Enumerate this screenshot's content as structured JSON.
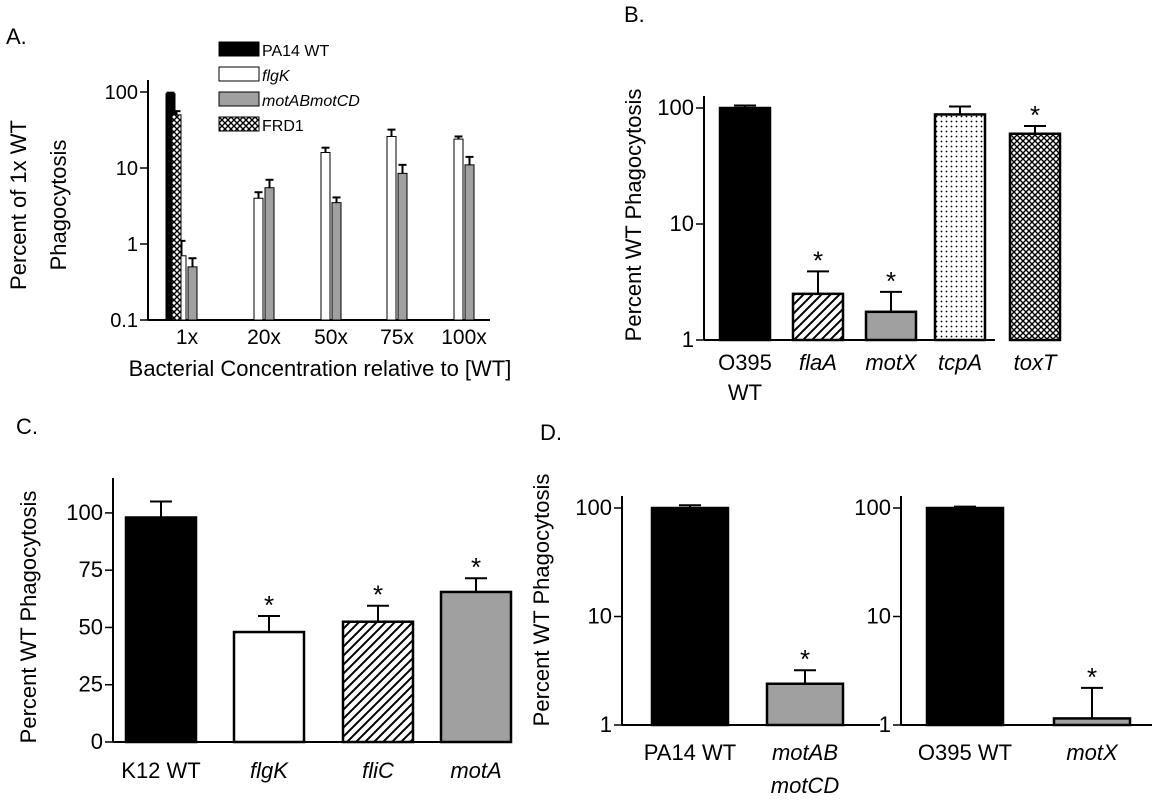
{
  "panels": [
    {
      "label": "A.",
      "ylabel_lines": [
        "Percent of 1x WT",
        "Phagocytosis"
      ],
      "xlabel": "Bacterial Concentration relative to [WT]",
      "yscale": "log",
      "ylim": [
        0.1,
        100
      ],
      "yticks": [
        0.1,
        1,
        10,
        100
      ],
      "ytick_labels": [
        "0.1",
        "1",
        "10",
        "100"
      ],
      "categories": [
        "1x",
        "20x",
        "50x",
        "75x",
        "100x"
      ],
      "legend": [
        {
          "name": "PA14 WT",
          "pattern": "black",
          "italic": false
        },
        {
          "name": "flgK",
          "pattern": "white",
          "italic": true
        },
        {
          "name": "motABmotCD",
          "pattern": "gray",
          "italic": true
        },
        {
          "name": "FRD1",
          "pattern": "crosshatch",
          "italic": false
        }
      ],
      "series": [
        {
          "name": "PA14 WT",
          "pattern": "black",
          "values": [
            95,
            null,
            null,
            null,
            null
          ],
          "errors": [
            3,
            null,
            null,
            null,
            null
          ]
        },
        {
          "name": "flgK",
          "pattern": "white",
          "values": [
            0.7,
            4,
            16,
            26,
            24
          ],
          "errors": [
            0.4,
            0.8,
            2.5,
            6,
            2
          ]
        },
        {
          "name": "motABmotCD",
          "pattern": "gray",
          "values": [
            0.5,
            5.5,
            3.5,
            8.5,
            11
          ],
          "errors": [
            0.15,
            1.5,
            0.6,
            2.5,
            3
          ]
        },
        {
          "name": "FRD1",
          "pattern": "crosshatch",
          "values": [
            50,
            null,
            null,
            null,
            null
          ],
          "errors": [
            6,
            null,
            null,
            null,
            null
          ]
        }
      ]
    },
    {
      "label": "B.",
      "ylabel_lines": [
        "Percent WT Phagocytosis"
      ],
      "yscale": "log",
      "ylim": [
        1,
        100
      ],
      "yticks": [
        1,
        10,
        100
      ],
      "ytick_labels": [
        "1",
        "10",
        "100"
      ],
      "bars": [
        {
          "label": [
            "O395",
            "WT"
          ],
          "italic": false,
          "value": 100,
          "error": 5,
          "pattern": "black",
          "star": false
        },
        {
          "label": [
            "flaA"
          ],
          "italic": true,
          "value": 2.5,
          "error": 1.4,
          "pattern": "diagonal",
          "star": true
        },
        {
          "label": [
            "motX"
          ],
          "italic": true,
          "value": 1.75,
          "error": 0.85,
          "pattern": "gray",
          "star": true
        },
        {
          "label": [
            "tcpA"
          ],
          "italic": true,
          "value": 88,
          "error": 15,
          "pattern": "dots",
          "star": false
        },
        {
          "label": [
            "toxT"
          ],
          "italic": true,
          "value": 60,
          "error": 10,
          "pattern": "crosshatch",
          "star": true
        }
      ]
    },
    {
      "label": "C.",
      "ylabel_lines": [
        "Percent WT Phagocytosis"
      ],
      "yscale": "linear",
      "ylim": [
        0,
        110
      ],
      "yticks": [
        0,
        25,
        50,
        75,
        100
      ],
      "ytick_labels": [
        "0",
        "25",
        "50",
        "75",
        "100"
      ],
      "bars": [
        {
          "label": [
            "K12 WT"
          ],
          "italic": false,
          "value": 98,
          "error": 7,
          "pattern": "black",
          "star": false
        },
        {
          "label": [
            "flgK"
          ],
          "italic": true,
          "value": 48,
          "error": 7,
          "pattern": "white",
          "star": true
        },
        {
          "label": [
            "fliC"
          ],
          "italic": true,
          "value": 52.5,
          "error": 7,
          "pattern": "diagonal",
          "star": true
        },
        {
          "label": [
            "motA"
          ],
          "italic": true,
          "value": 65.5,
          "error": 6,
          "pattern": "gray",
          "star": true
        }
      ]
    },
    {
      "label": "D.",
      "ylabel_lines": [
        "Percent WT Phagocytosis"
      ],
      "yscale": "log",
      "ylim": [
        1,
        100
      ],
      "yticks": [
        1,
        10,
        100
      ],
      "ytick_labels": [
        "1",
        "10",
        "100"
      ],
      "bars": [
        {
          "label": [
            "PA14 WT"
          ],
          "italic": false,
          "value": 100,
          "error": 6,
          "pattern": "black",
          "star": false
        },
        {
          "label": [
            "motAB",
            "motCD"
          ],
          "italic": true,
          "value": 2.4,
          "error": 0.8,
          "pattern": "gray",
          "star": true
        }
      ]
    },
    {
      "label": "",
      "ylabel_lines": [],
      "yscale": "log",
      "ylim": [
        1,
        100
      ],
      "yticks": [
        1,
        10,
        100
      ],
      "ytick_labels": [
        "1",
        "10",
        "100"
      ],
      "bars": [
        {
          "label": [
            "O395 WT"
          ],
          "italic": false,
          "value": 100,
          "error": 3,
          "pattern": "black",
          "star": false
        },
        {
          "label": [
            "motX"
          ],
          "italic": true,
          "value": 1.15,
          "error": 1.05,
          "pattern": "gray",
          "star": true
        }
      ]
    }
  ],
  "star_symbol": "*",
  "colors": {
    "black": "#000000",
    "gray": "#a0a0a0",
    "white": "#ffffff"
  },
  "chart_data": [
    {
      "type": "bar",
      "panel": "A.",
      "xlabel": "Bacterial Concentration relative to [WT]",
      "ylabel": "Percent of 1x WT Phagocytosis",
      "yscale": "log",
      "ylim": [
        0.1,
        100
      ],
      "categories": [
        "1x",
        "20x",
        "50x",
        "75x",
        "100x"
      ],
      "series": [
        {
          "name": "PA14 WT",
          "values": [
            95,
            null,
            null,
            null,
            null
          ]
        },
        {
          "name": "flgK",
          "values": [
            0.7,
            4,
            16,
            26,
            24
          ]
        },
        {
          "name": "motABmotCD",
          "values": [
            0.5,
            5.5,
            3.5,
            8.5,
            11
          ]
        },
        {
          "name": "FRD1",
          "values": [
            50,
            null,
            null,
            null,
            null
          ]
        }
      ],
      "legend": "top-right"
    },
    {
      "type": "bar",
      "panel": "B.",
      "ylabel": "Percent WT Phagocytosis",
      "yscale": "log",
      "ylim": [
        1,
        100
      ],
      "categories": [
        "O395 WT",
        "flaA",
        "motX",
        "tcpA",
        "toxT"
      ],
      "values": [
        100,
        2.5,
        1.75,
        88,
        60
      ]
    },
    {
      "type": "bar",
      "panel": "C.",
      "ylabel": "Percent WT Phagocytosis",
      "yscale": "linear",
      "ylim": [
        0,
        110
      ],
      "categories": [
        "K12 WT",
        "flgK",
        "fliC",
        "motA"
      ],
      "values": [
        98,
        48,
        52.5,
        65.5
      ]
    },
    {
      "type": "bar",
      "panel": "D.",
      "ylabel": "Percent WT Phagocytosis",
      "yscale": "log",
      "ylim": [
        1,
        100
      ],
      "categories": [
        "PA14 WT",
        "motAB motCD"
      ],
      "values": [
        100,
        2.4
      ]
    },
    {
      "type": "bar",
      "panel": "D.",
      "yscale": "log",
      "ylim": [
        1,
        100
      ],
      "categories": [
        "O395 WT",
        "motX"
      ],
      "values": [
        100,
        1.15
      ]
    }
  ]
}
